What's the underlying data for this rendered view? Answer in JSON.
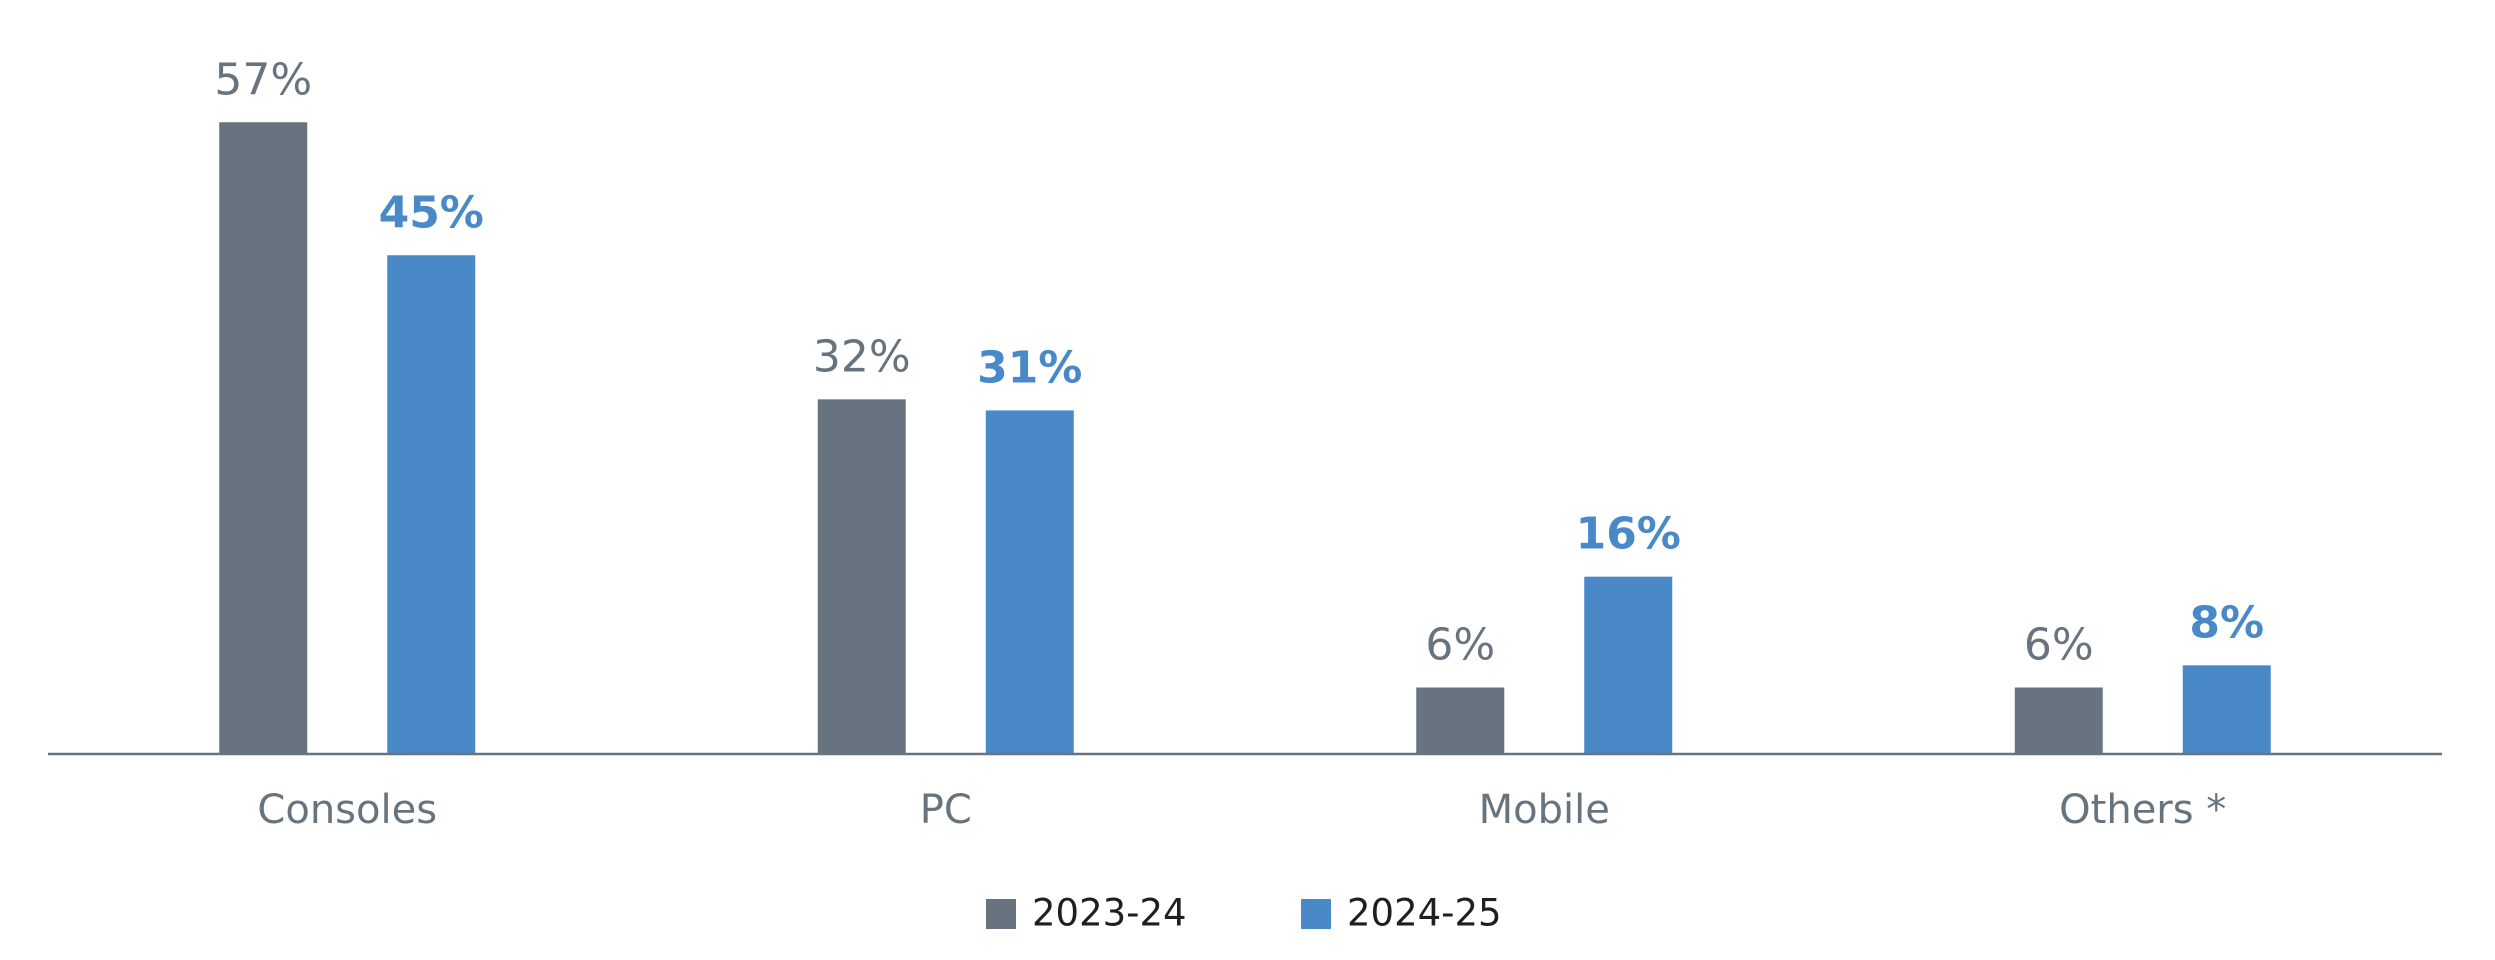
{
  "chart_data": {
    "type": "bar",
    "categories": [
      "Consoles",
      "PC",
      "Mobile",
      "Others *"
    ],
    "series": [
      {
        "name": "2023-24",
        "color": "#67747f",
        "values": [
          57,
          32,
          6,
          6
        ],
        "value_labels": [
          "57%",
          "32%",
          "6%",
          "6%"
        ]
      },
      {
        "name": "2024-25",
        "color": "#4a89c8",
        "values": [
          45,
          31,
          16,
          8
        ],
        "value_labels": [
          "45%",
          "31%",
          "16%",
          "8%"
        ]
      }
    ],
    "ylim": [
      0,
      60
    ],
    "legend": "bottom"
  }
}
